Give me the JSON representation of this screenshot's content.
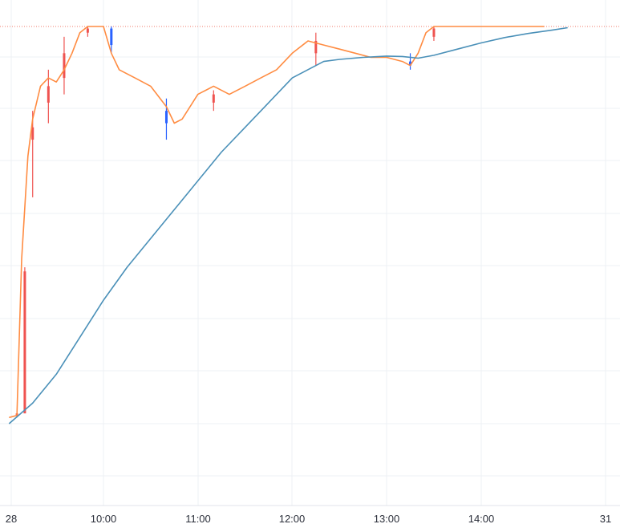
{
  "chart_data": {
    "type": "line",
    "x_axis": {
      "ticks": [
        "28",
        "10:00",
        "11:00",
        "12:00",
        "13:00",
        "14:00",
        "31"
      ]
    },
    "y_axis": {
      "ylim": [
        0,
        100
      ],
      "tick_labels_visible": false
    },
    "grid": true,
    "price_line_level": 96.5,
    "series": [
      {
        "kind": "candles",
        "up_color": "#ef5350",
        "down_color": "#2962ff",
        "sample_candles": [
          {
            "x": "09:05",
            "open": 2,
            "high": 3,
            "low": 1.5,
            "close": 2.5
          },
          {
            "x": "09:10",
            "open": 2.5,
            "high": 38,
            "low": 35,
            "close": 37
          },
          {
            "x": "09:15",
            "open": 69,
            "high": 76,
            "low": 55,
            "close": 72
          },
          {
            "x": "09:25",
            "open": 78,
            "high": 86,
            "low": 73,
            "close": 82
          },
          {
            "x": "09:35",
            "open": 84,
            "high": 94,
            "low": 80,
            "close": 90
          },
          {
            "x": "09:50",
            "open": 95,
            "high": 96.5,
            "low": 94,
            "close": 96
          },
          {
            "x": "10:05",
            "open": 96,
            "high": 96.5,
            "low": 90,
            "close": 92
          },
          {
            "x": "10:40",
            "open": 76,
            "high": 79,
            "low": 69,
            "close": 73
          },
          {
            "x": "11:10",
            "open": 78,
            "high": 81,
            "low": 76,
            "close": 80
          },
          {
            "x": "12:15",
            "open": 90,
            "high": 95,
            "low": 87,
            "close": 93
          },
          {
            "x": "13:15",
            "open": 88,
            "high": 90,
            "low": 86,
            "close": 87
          },
          {
            "x": "13:30",
            "open": 94,
            "high": 96.5,
            "low": 93,
            "close": 96
          }
        ]
      },
      {
        "kind": "line",
        "color": "#ff8c42",
        "x": [
          "09:00",
          "09:05",
          "09:08",
          "09:12",
          "09:15",
          "09:20",
          "09:25",
          "09:30",
          "09:35",
          "09:40",
          "09:45",
          "09:50",
          "09:55",
          "10:00",
          "10:05",
          "10:10",
          "10:20",
          "10:30",
          "10:40",
          "10:45",
          "10:50",
          "11:00",
          "11:10",
          "11:20",
          "11:30",
          "11:40",
          "11:50",
          "12:00",
          "12:10",
          "12:20",
          "12:30",
          "12:40",
          "12:50",
          "13:00",
          "13:10",
          "13:15",
          "13:20",
          "13:25",
          "13:30",
          "13:35",
          "14:00",
          "14:30",
          "14:40"
        ],
        "y": [
          1.5,
          2,
          40,
          65,
          74,
          82,
          84,
          83,
          86,
          90,
          95,
          96.5,
          96.5,
          96.5,
          90,
          86,
          84,
          82,
          77,
          73,
          74,
          80,
          82,
          80,
          82,
          84,
          86,
          90,
          93,
          92,
          91,
          90,
          89,
          89,
          88,
          87,
          90,
          95,
          96.5,
          96.5,
          96.5,
          96.5,
          96.5
        ]
      },
      {
        "kind": "line",
        "color": "#4a90b8",
        "x": [
          "09:00",
          "09:15",
          "09:30",
          "09:45",
          "10:00",
          "10:15",
          "10:30",
          "10:45",
          "11:00",
          "11:15",
          "11:30",
          "11:45",
          "12:00",
          "12:15",
          "12:20",
          "12:30",
          "12:45",
          "13:00",
          "13:10",
          "13:20",
          "13:30",
          "13:45",
          "14:00",
          "14:15",
          "14:30",
          "14:45",
          "14:55"
        ],
        "y": [
          0,
          5,
          12,
          21,
          30,
          38,
          45,
          52,
          59,
          66,
          72,
          78,
          84,
          87,
          88,
          88.5,
          89,
          89.3,
          89.2,
          88.8,
          89.5,
          91,
          92.5,
          93.8,
          94.8,
          95.6,
          96.2
        ]
      }
    ]
  }
}
